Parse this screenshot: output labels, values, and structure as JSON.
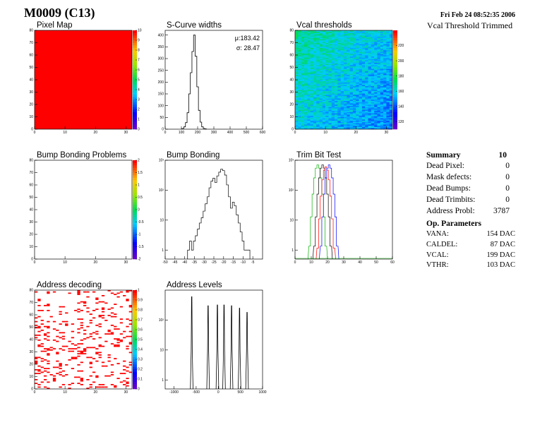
{
  "header": {
    "title": "M0009 (C13)",
    "date": "Fri Feb 24 08:52:35 2006",
    "subtitle": "Vcal Threshold Trimmed"
  },
  "summary": {
    "title": "Summary",
    "value": "10",
    "rows": [
      {
        "label": "Dead Pixel:",
        "value": "0"
      },
      {
        "label": "Mask defects:",
        "value": "0"
      },
      {
        "label": "Dead Bumps:",
        "value": "0"
      },
      {
        "label": "Dead Trimbits:",
        "value": "0"
      },
      {
        "label": "Address Probl:",
        "value": "3787"
      }
    ]
  },
  "op_params": {
    "title": "Op. Parameters",
    "rows": [
      {
        "label": "VANA:",
        "value": "154 DAC"
      },
      {
        "label": "CALDEL:",
        "value": "87 DAC"
      },
      {
        "label": "VCAL:",
        "value": "199 DAC"
      },
      {
        "label": "VTHR:",
        "value": "103 DAC"
      }
    ]
  },
  "colors": {
    "red_fill": "#ff0000",
    "line": "#000000",
    "trim_colors": [
      "#00b000",
      "#000000",
      "#ff0000",
      "#0000ff"
    ]
  },
  "chart_data": [
    {
      "id": "pixel-map",
      "type": "heatmap",
      "title": "Pixel Map",
      "xlim": [
        0,
        32
      ],
      "ylim": [
        0,
        80
      ],
      "zlim": [
        0,
        10
      ],
      "xticks": [
        "0",
        "10",
        "20",
        "30"
      ],
      "yticks": [
        "0",
        "10",
        "20",
        "30",
        "40",
        "50",
        "60",
        "70",
        "80"
      ],
      "zticks": [
        "0",
        "1",
        "2",
        "3",
        "4",
        "5",
        "6",
        "7",
        "8",
        "9",
        "10"
      ],
      "fill_value": 10
    },
    {
      "id": "scurve-widths",
      "type": "bar",
      "title": "S-Curve widths",
      "xlim": [
        0,
        600
      ],
      "ylim": [
        0,
        420
      ],
      "xticks": [
        "0",
        "100",
        "200",
        "300",
        "400",
        "500",
        "600"
      ],
      "yticks": [
        "0",
        "50",
        "100",
        "150",
        "200",
        "250",
        "300",
        "350",
        "400"
      ],
      "stats": {
        "mu_label": "μ:183.42",
        "sigma_label": "σ: 28.47"
      },
      "bins_x": [
        110,
        120,
        130,
        140,
        150,
        160,
        170,
        180,
        190,
        200,
        210,
        220,
        230,
        240,
        250
      ],
      "values": [
        3,
        10,
        28,
        70,
        150,
        240,
        330,
        400,
        310,
        180,
        80,
        30,
        10,
        3,
        1
      ]
    },
    {
      "id": "vcal-thresholds",
      "type": "heatmap",
      "title": "Vcal thresholds",
      "xlim": [
        0,
        32
      ],
      "ylim": [
        0,
        80
      ],
      "zlim": [
        110,
        240
      ],
      "xticks": [
        "0",
        "10",
        "20",
        "30"
      ],
      "yticks": [
        "0",
        "10",
        "20",
        "30",
        "40",
        "50",
        "60",
        "70",
        "80"
      ],
      "zticks": [
        "120",
        "140",
        "160",
        "180",
        "200",
        "220"
      ]
    },
    {
      "id": "bump-bonding-problems",
      "type": "heatmap",
      "title": "Bump Bonding Problems",
      "xlim": [
        0,
        32
      ],
      "ylim": [
        0,
        80
      ],
      "zlim": [
        -2,
        2
      ],
      "xticks": [
        "0",
        "10",
        "20",
        "30"
      ],
      "yticks": [
        "0",
        "10",
        "20",
        "30",
        "40",
        "50",
        "60",
        "70",
        "80"
      ],
      "zticks": [
        "-2",
        "-1.5",
        "-1",
        "-0.5",
        "0",
        "0.5",
        "1",
        "1.5",
        "2"
      ]
    },
    {
      "id": "bump-bonding",
      "type": "bar",
      "title": "Bump Bonding",
      "yscale": "log",
      "xlim": [
        -50,
        0
      ],
      "ylim": [
        0.5,
        1000
      ],
      "xticks": [
        "-50",
        "-45",
        "-40",
        "-35",
        "-30",
        "-25",
        "-20",
        "-15",
        "-10",
        "-5"
      ],
      "ytick_labels": [
        "1",
        "10",
        "10²",
        "10³"
      ],
      "bins_x": [
        -38,
        -37,
        -36,
        -35,
        -34,
        -33,
        -32,
        -31,
        -30,
        -29,
        -28,
        -27,
        -26,
        -25,
        -24,
        -23,
        -22,
        -21,
        -20,
        -19,
        -18,
        -17,
        -16,
        -15,
        -14,
        -13,
        -12,
        -11,
        -10,
        -9,
        -8,
        -7
      ],
      "values": [
        1,
        2,
        1,
        2,
        3,
        5,
        8,
        12,
        20,
        35,
        60,
        120,
        200,
        250,
        180,
        300,
        400,
        500,
        450,
        320,
        150,
        60,
        25,
        40,
        30,
        15,
        8,
        4,
        2,
        1,
        1,
        1
      ]
    },
    {
      "id": "trim-bit-test",
      "type": "line",
      "title": "Trim Bit Test",
      "yscale": "log",
      "xlim": [
        0,
        60
      ],
      "ylim": [
        0.5,
        1000
      ],
      "xticks": [
        "0",
        "10",
        "20",
        "30",
        "40",
        "50",
        "60"
      ],
      "ytick_labels": [
        "1",
        "10",
        "10²",
        "10³"
      ],
      "series": [
        {
          "center": 14,
          "peak": 700
        },
        {
          "center": 17,
          "peak": 700
        },
        {
          "center": 19,
          "peak": 600
        },
        {
          "center": 21,
          "peak": 700
        }
      ]
    },
    {
      "id": "address-decoding",
      "type": "heatmap",
      "title": "Address decoding",
      "xlim": [
        0,
        32
      ],
      "ylim": [
        0,
        80
      ],
      "zlim": [
        0,
        1
      ],
      "xticks": [
        "0",
        "10",
        "20",
        "30"
      ],
      "yticks": [
        "0",
        "10",
        "20",
        "30",
        "40",
        "50",
        "60",
        "70",
        "80"
      ],
      "zticks": [
        "0",
        "0.1",
        "0.2",
        "0.3",
        "0.4",
        "0.5",
        "0.6",
        "0.7",
        "0.8",
        "0.9",
        "1"
      ],
      "fraction_filled": 0.15
    },
    {
      "id": "address-levels",
      "type": "line",
      "title": "Address Levels",
      "yscale": "log",
      "xlim": [
        -1200,
        1000
      ],
      "ylim": [
        0.5,
        1000
      ],
      "xticks": [
        "-1000",
        "-500",
        "0",
        "500",
        "1000"
      ],
      "ytick_labels": [
        "1",
        "10",
        "10²"
      ],
      "peaks": [
        {
          "x": -600,
          "h": 600
        },
        {
          "x": -230,
          "h": 300
        },
        {
          "x": -20,
          "h": 320
        },
        {
          "x": 130,
          "h": 320
        },
        {
          "x": 300,
          "h": 300
        },
        {
          "x": 480,
          "h": 250
        },
        {
          "x": 650,
          "h": 180
        }
      ]
    }
  ]
}
